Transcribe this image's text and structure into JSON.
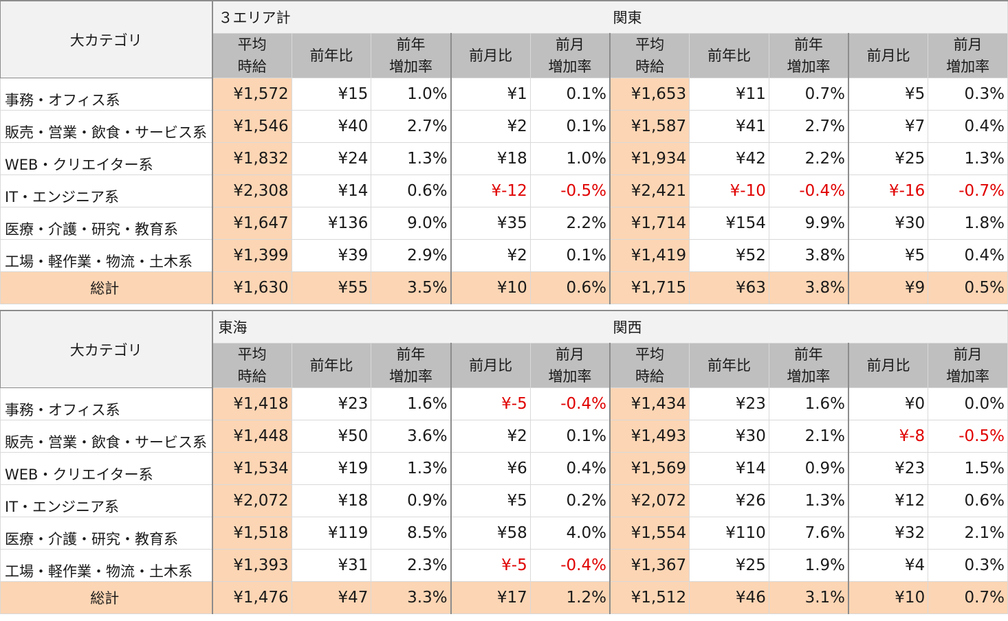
{
  "category_header": "大カテゴリ",
  "total_label": "総計",
  "sub_headers": {
    "avg_line1": "平均",
    "avg_line2": "時給",
    "yoy": "前年比",
    "yoy_rate_line1": "前年",
    "yoy_rate_line2": "増加率",
    "mom": "前月比",
    "mom_rate_line1": "前月",
    "mom_rate_line2": "増加率"
  },
  "blocks": [
    {
      "left_region": "３エリア計",
      "right_region": "関東",
      "rows": [
        {
          "label": "事務・オフィス系",
          "left": [
            "¥1,572",
            "¥15",
            "1.0%",
            "¥1",
            "0.1%"
          ],
          "right": [
            "¥1,653",
            "¥11",
            "0.7%",
            "¥5",
            "0.3%"
          ]
        },
        {
          "label": "販売・営業・飲食・サービス系",
          "left": [
            "¥1,546",
            "¥40",
            "2.7%",
            "¥2",
            "0.1%"
          ],
          "right": [
            "¥1,587",
            "¥41",
            "2.7%",
            "¥7",
            "0.4%"
          ]
        },
        {
          "label": "WEB・クリエイター系",
          "left": [
            "¥1,832",
            "¥24",
            "1.3%",
            "¥18",
            "1.0%"
          ],
          "right": [
            "¥1,934",
            "¥42",
            "2.2%",
            "¥25",
            "1.3%"
          ]
        },
        {
          "label": "IT・エンジニア系",
          "left": [
            "¥2,308",
            "¥14",
            "0.6%",
            "¥-12",
            "-0.5%"
          ],
          "right": [
            "¥2,421",
            "¥-10",
            "-0.4%",
            "¥-16",
            "-0.7%"
          ]
        },
        {
          "label": "医療・介護・研究・教育系",
          "left": [
            "¥1,647",
            "¥136",
            "9.0%",
            "¥35",
            "2.2%"
          ],
          "right": [
            "¥1,714",
            "¥154",
            "9.9%",
            "¥30",
            "1.8%"
          ]
        },
        {
          "label": "工場・軽作業・物流・土木系",
          "left": [
            "¥1,399",
            "¥39",
            "2.9%",
            "¥2",
            "0.1%"
          ],
          "right": [
            "¥1,419",
            "¥52",
            "3.8%",
            "¥5",
            "0.4%"
          ]
        }
      ],
      "total": {
        "left": [
          "¥1,630",
          "¥55",
          "3.5%",
          "¥10",
          "0.6%"
        ],
        "right": [
          "¥1,715",
          "¥63",
          "3.8%",
          "¥9",
          "0.5%"
        ]
      }
    },
    {
      "left_region": "東海",
      "right_region": "関西",
      "rows": [
        {
          "label": "事務・オフィス系",
          "left": [
            "¥1,418",
            "¥23",
            "1.6%",
            "¥-5",
            "-0.4%"
          ],
          "right": [
            "¥1,434",
            "¥23",
            "1.6%",
            "¥0",
            "0.0%"
          ]
        },
        {
          "label": "販売・営業・飲食・サービス系",
          "left": [
            "¥1,448",
            "¥50",
            "3.6%",
            "¥2",
            "0.1%"
          ],
          "right": [
            "¥1,493",
            "¥30",
            "2.1%",
            "¥-8",
            "-0.5%"
          ]
        },
        {
          "label": "WEB・クリエイター系",
          "left": [
            "¥1,534",
            "¥19",
            "1.3%",
            "¥6",
            "0.4%"
          ],
          "right": [
            "¥1,569",
            "¥14",
            "0.9%",
            "¥23",
            "1.5%"
          ]
        },
        {
          "label": "IT・エンジニア系",
          "left": [
            "¥2,072",
            "¥18",
            "0.9%",
            "¥5",
            "0.2%"
          ],
          "right": [
            "¥2,072",
            "¥26",
            "1.3%",
            "¥12",
            "0.6%"
          ]
        },
        {
          "label": "医療・介護・研究・教育系",
          "left": [
            "¥1,518",
            "¥119",
            "8.5%",
            "¥58",
            "4.0%"
          ],
          "right": [
            "¥1,554",
            "¥110",
            "7.6%",
            "¥32",
            "2.1%"
          ]
        },
        {
          "label": "工場・軽作業・物流・土木系",
          "left": [
            "¥1,393",
            "¥31",
            "2.3%",
            "¥-5",
            "-0.4%"
          ],
          "right": [
            "¥1,367",
            "¥25",
            "1.9%",
            "¥4",
            "0.3%"
          ]
        }
      ],
      "total": {
        "left": [
          "¥1,476",
          "¥47",
          "3.3%",
          "¥17",
          "1.2%"
        ],
        "right": [
          "¥1,512",
          "¥46",
          "3.1%",
          "¥10",
          "0.7%"
        ]
      }
    }
  ],
  "colors": {
    "avg_highlight": "#fcd5b4",
    "header_gray": "#bfbfbf",
    "negative": "#e00000"
  }
}
